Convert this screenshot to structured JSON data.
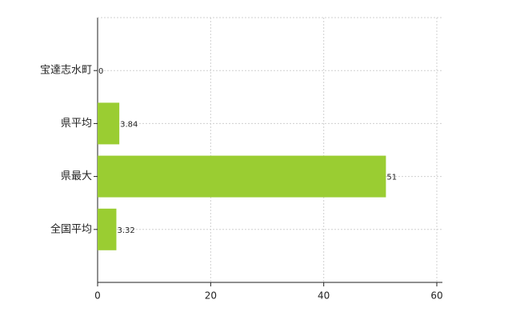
{
  "chart_data": {
    "type": "bar",
    "orientation": "horizontal",
    "categories": [
      "宝達志水町",
      "県平均",
      "県最大",
      "全国平均"
    ],
    "values": [
      0,
      3.84,
      51,
      3.32
    ],
    "color": "#9acd32",
    "xlim": [
      0,
      60
    ],
    "xticks": [
      0,
      20,
      40,
      60
    ],
    "grid": true
  }
}
